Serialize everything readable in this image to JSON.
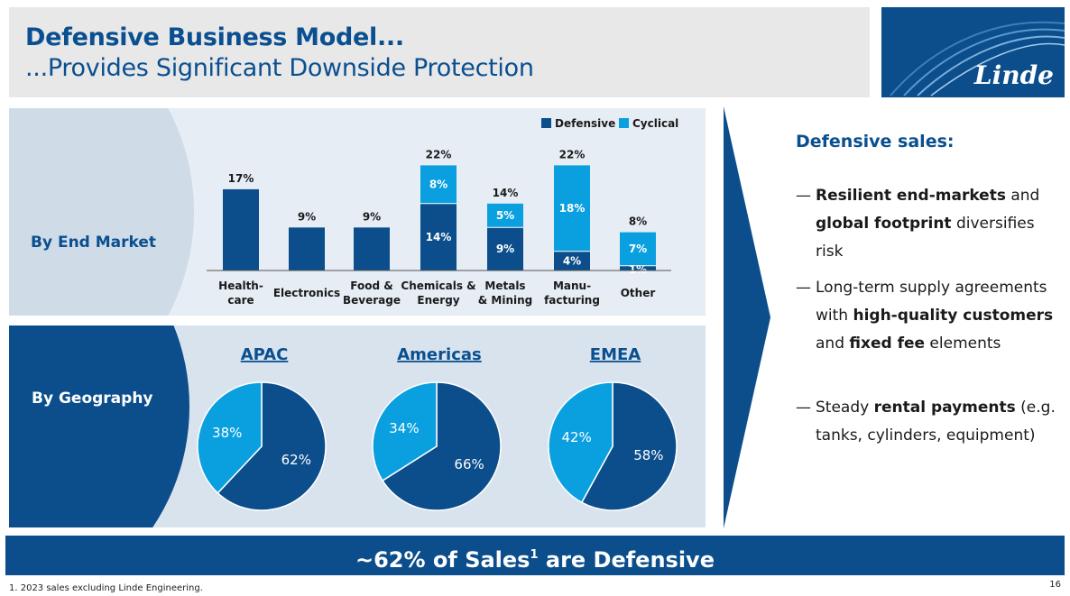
{
  "title": {
    "line1": "Defensive Business Model...",
    "line2": "...Provides Significant Downside Protection"
  },
  "logo": {
    "text": "Linde"
  },
  "end_market": {
    "label": "By End Market",
    "legend": {
      "defensive": "Defensive",
      "cyclical": "Cyclical"
    },
    "colors": {
      "defensive": "#0b4e8b",
      "cyclical": "#0aa0e0"
    }
  },
  "geography": {
    "label": "By Geography",
    "regions": [
      {
        "name": "APAC",
        "defensive": 62,
        "cyclical": 38,
        "defensive_label": "62%",
        "cyclical_label": "38%"
      },
      {
        "name": "Americas",
        "defensive": 66,
        "cyclical": 34,
        "defensive_label": "66%",
        "cyclical_label": "34%"
      },
      {
        "name": "EMEA",
        "defensive": 58,
        "cyclical": 42,
        "defensive_label": "58%",
        "cyclical_label": "42%"
      }
    ]
  },
  "chart_data": {
    "type": "bar",
    "stacked": true,
    "categories": [
      [
        "Health-",
        "care"
      ],
      [
        "Electronics"
      ],
      [
        "Food &",
        "Beverage"
      ],
      [
        "Chemicals &",
        "Energy"
      ],
      [
        "Metals",
        "& Mining"
      ],
      [
        "Manu-",
        "facturing"
      ],
      [
        "Other"
      ]
    ],
    "series": [
      {
        "name": "Defensive",
        "values": [
          17,
          9,
          9,
          14,
          9,
          4,
          1
        ],
        "labels": [
          "",
          "",
          "",
          "14%",
          "9%",
          "4%",
          "1%"
        ]
      },
      {
        "name": "Cyclical",
        "values": [
          0,
          0,
          0,
          8,
          5,
          18,
          7
        ],
        "labels": [
          "",
          "",
          "",
          "8%",
          "5%",
          "18%",
          "7%"
        ]
      }
    ],
    "totals": [
      "17%",
      "9%",
      "9%",
      "22%",
      "14%",
      "22%",
      "8%"
    ],
    "legend": "top-right"
  },
  "right_panel": {
    "heading": "Defensive sales:",
    "bullets": [
      {
        "dash": "—",
        "parts": [
          {
            "b": "Resilient end-markets"
          },
          {
            "t": " and "
          },
          {
            "b": "global footprint"
          },
          {
            "t": " diversifies risk"
          }
        ]
      },
      {
        "dash": "—",
        "parts": [
          {
            "t": "Long-term supply agreements with "
          },
          {
            "b": "high-quality customers"
          },
          {
            "t": " and "
          },
          {
            "b": "fixed fee"
          },
          {
            "t": " elements"
          }
        ]
      },
      {
        "dash": "—",
        "parts": [
          {
            "t": "Steady "
          },
          {
            "b": "rental payments"
          },
          {
            "t": " (e.g. tanks, cylinders, equipment)"
          }
        ]
      }
    ]
  },
  "bottom_bar": {
    "prefix": "~62% of Sales",
    "sup": "1",
    "suffix": " are Defensive"
  },
  "footnote": "1. 2023 sales excluding Linde Engineering.",
  "page_number": "16"
}
